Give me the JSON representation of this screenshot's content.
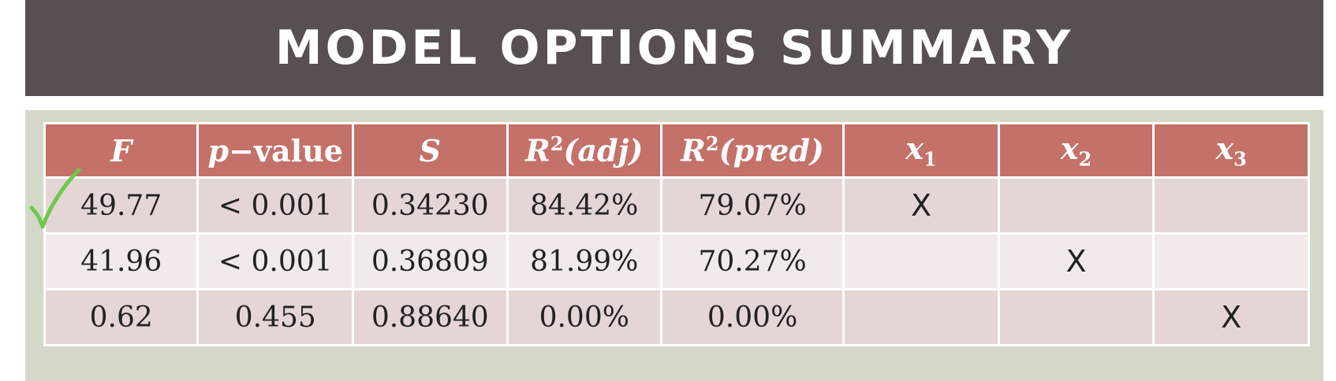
{
  "title": "MODEL OPTIONS SUMMARY",
  "headers": {
    "f": "F",
    "pvalue_p": "p",
    "pvalue_rest": "−value",
    "s": "S",
    "r2adj_r": "R",
    "r2adj_sup": "2",
    "r2adj_rest": "(adj)",
    "r2pred_r": "R",
    "r2pred_sup": "2",
    "r2pred_rest": "(pred)",
    "x1": "x",
    "x1_sub": "1",
    "x2": "x",
    "x2_sub": "2",
    "x3": "x",
    "x3_sub": "3"
  },
  "rows": [
    {
      "f": "49.77",
      "p": "< 0.001",
      "s": "0.34230",
      "r2adj": "84.42%",
      "r2pred": "79.07%",
      "x1": "X",
      "x2": "",
      "x3": ""
    },
    {
      "f": "41.96",
      "p": "< 0.001",
      "s": "0.36809",
      "r2adj": "81.99%",
      "r2pred": "70.27%",
      "x1": "",
      "x2": "X",
      "x3": ""
    },
    {
      "f": "0.62",
      "p": "0.455",
      "s": "0.88640",
      "r2adj": "0.00%",
      "r2pred": "0.00%",
      "x1": "",
      "x2": "",
      "x3": "X"
    }
  ],
  "selected_row_marker": "check-icon",
  "colors": {
    "title_bar": "#585050",
    "panel": "#d3d8c9",
    "header": "#c4716a",
    "row_dark": "#e5d6d6",
    "row_light": "#f2e9e9",
    "check": "#6ec94c"
  }
}
